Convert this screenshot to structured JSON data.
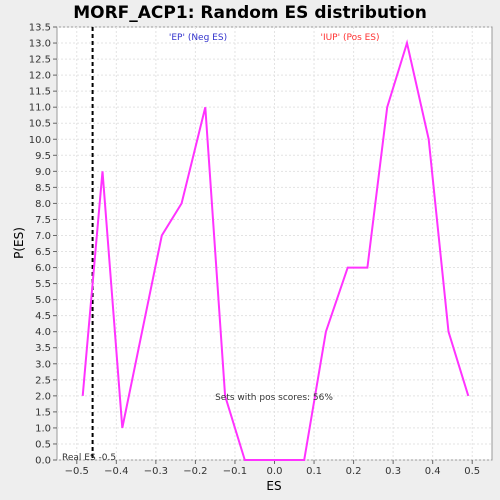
{
  "chart_data": {
    "type": "line",
    "title": "MORF_ACP1: Random ES distribution",
    "xlabel": "ES",
    "ylabel": "P(ES)",
    "xlim": [
      -0.55,
      0.55
    ],
    "ylim": [
      0,
      13.5
    ],
    "x_ticks": [
      -0.5,
      -0.4,
      -0.3,
      -0.2,
      -0.1,
      0.0,
      0.1,
      0.2,
      0.3,
      0.4,
      0.5
    ],
    "x_tick_labels": [
      "−0.5",
      "−0.4",
      "−0.3",
      "−0.2",
      "−0.1",
      "0.0",
      "0.1",
      "0.2",
      "0.3",
      "0.4",
      "0.5"
    ],
    "y_ticks": [
      0,
      0.5,
      1,
      1.5,
      2,
      2.5,
      3,
      3.5,
      4,
      4.5,
      5,
      5.5,
      6,
      6.5,
      7,
      7.5,
      8,
      8.5,
      9,
      9.5,
      10,
      10.5,
      11,
      11.5,
      12,
      12.5,
      13,
      13.5
    ],
    "y_tick_labels": [
      "0.0",
      "0.5",
      "1.0",
      "1.5",
      "2.0",
      "2.5",
      "3.0",
      "3.5",
      "4.0",
      "4.5",
      "5.0",
      "5.5",
      "6.0",
      "6.5",
      "7.0",
      "7.5",
      "8.0",
      "8.5",
      "9.0",
      "9.5",
      "10.0",
      "10.5",
      "11.0",
      "11.5",
      "12.0",
      "12.5",
      "13.0",
      "13.5"
    ],
    "grid": true,
    "series": [
      {
        "color": "#ff33ff",
        "x": [
          -0.485,
          -0.435,
          -0.385,
          -0.285,
          -0.235,
          -0.175,
          -0.125,
          -0.075,
          0.0,
          0.075,
          0.13,
          0.185,
          0.235,
          0.285,
          0.335,
          0.39,
          0.44,
          0.49
        ],
        "y": [
          2,
          9,
          1,
          7,
          8,
          11,
          2,
          0,
          0,
          0,
          4,
          6,
          6,
          11,
          13,
          10,
          4,
          2
        ]
      }
    ],
    "real_es": -0.46,
    "real_es_label": "Real ES -0.5",
    "annotations": {
      "neg_label": "'EP' (Neg ES)",
      "neg_color": "#3333cc",
      "pos_label": "'IUP' (Pos ES)",
      "pos_color": "#ff3333",
      "pos_scores_text": "Sets with pos scores: 56%"
    }
  }
}
